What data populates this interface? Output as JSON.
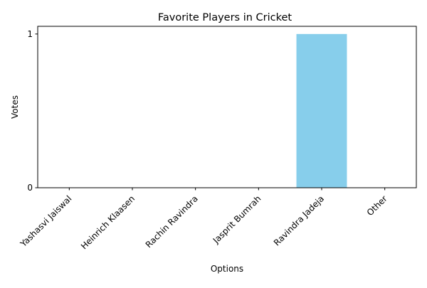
{
  "chart_data": {
    "type": "bar",
    "title": "Favorite Players in Cricket",
    "xlabel": "Options",
    "ylabel": "Votes",
    "categories": [
      "Yashasvi Jaiswal",
      "Heinrich Klaasen",
      "Rachin Ravindra",
      "Jasprit Bumrah",
      "Ravindra Jadeja",
      "Other"
    ],
    "values": [
      0,
      0,
      0,
      0,
      1,
      0
    ],
    "yticks": [
      0,
      1
    ],
    "ylim": [
      0,
      1.05
    ],
    "grid": false,
    "legend": "none",
    "bar_color": "#87CEEB"
  }
}
